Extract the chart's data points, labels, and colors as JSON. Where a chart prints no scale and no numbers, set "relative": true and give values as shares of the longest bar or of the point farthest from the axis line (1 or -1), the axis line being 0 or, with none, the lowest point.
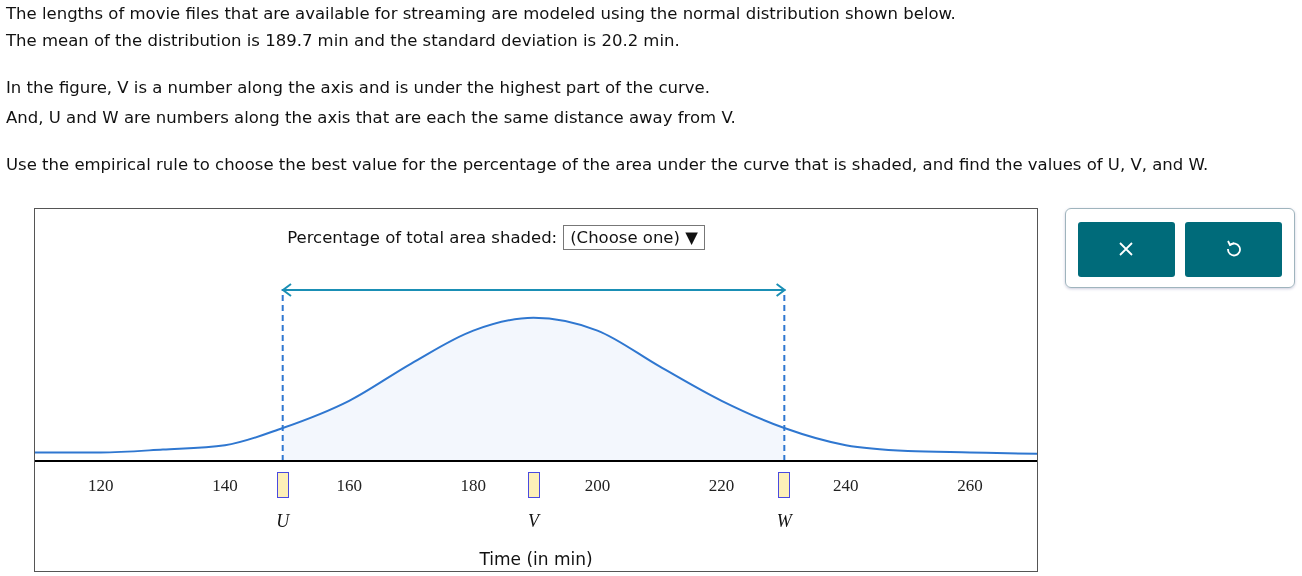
{
  "chart_data": {
    "type": "line",
    "title": "The lengths of movie files that are available for streaming are modeled using the normal distribution shown below.",
    "subtitle": "The mean of the distribution is 189.7 min and the standard deviation is 20.2 min.",
    "annotations": [
      "In the figure, V is a number along the axis and is under the highest part of the curve.",
      "And, U and W are numbers along the axis that are each the same distance away from V.",
      "Use the empirical rule to choose the best value for the percentage of the area under the curve that is shaded, and find the values of U, V, and W.",
      "Percentage of total area shaded:",
      "(Choose one) ▼",
      "U",
      "V",
      "W"
    ],
    "xlabel": "Time (in min)",
    "relative": true,
    "xlim": [
      109.4,
      270.8
    ],
    "xticks": [
      120,
      140,
      160,
      180,
      200,
      220,
      240,
      260
    ],
    "tick_labels": "x",
    "series": [
      {
        "type": "area",
        "color": "#f3f7fd",
        "x": [
          149.3,
          160,
          170,
          180,
          189.7,
          200,
          210,
          220,
          230.1
        ],
        "values": [
          0.23,
          0.42,
          0.68,
          0.91,
          1,
          0.91,
          0.66,
          0.42,
          0.23
        ]
      },
      {
        "color": "#2f77d0",
        "x": [
          109.4,
          120,
          130,
          140,
          149.3,
          160,
          170,
          180,
          189.7,
          200,
          210,
          220,
          230.1,
          240,
          250,
          260,
          270.8
        ],
        "values": [
          0.06,
          0.06,
          0.08,
          0.11,
          0.23,
          0.42,
          0.68,
          0.91,
          1,
          0.91,
          0.66,
          0.42,
          0.23,
          0.11,
          0.07,
          0.06,
          0.05
        ]
      }
    ],
    "ref_lines": [
      {
        "axis": "x",
        "value": 149.3,
        "color": "#2f77d0",
        "line_style": "dashed"
      },
      {
        "axis": "x",
        "value": 230.1,
        "color": "#2f77d0",
        "line_style": "dashed"
      }
    ],
    "marker": "none",
    "grid": false
  }
}
